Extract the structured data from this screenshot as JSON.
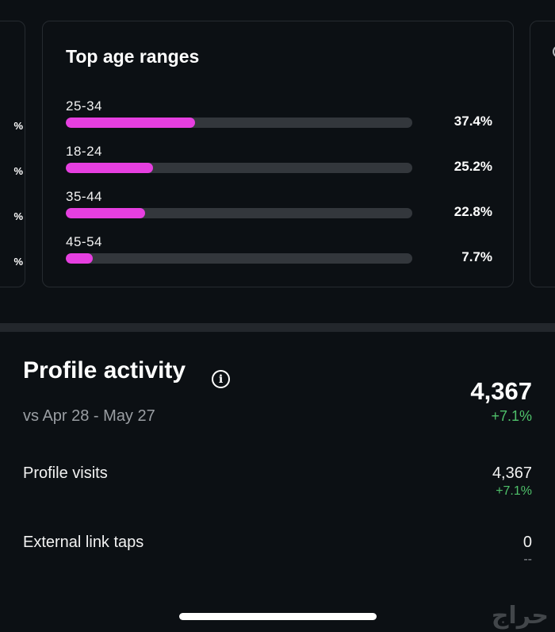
{
  "left_card": {
    "pct_labels": [
      "%",
      "%",
      "%",
      "%"
    ]
  },
  "age_card": {
    "title": "Top age ranges",
    "ranges": [
      {
        "label": "25-34",
        "value": 37.4,
        "display": "37.4%"
      },
      {
        "label": "18-24",
        "value": 25.2,
        "display": "25.2%"
      },
      {
        "label": "35-44",
        "value": 22.8,
        "display": "22.8%"
      },
      {
        "label": "45-54",
        "value": 7.7,
        "display": "7.7%"
      }
    ],
    "bar_color": "#e63fe0",
    "track_color": "#33373c"
  },
  "profile_activity": {
    "title": "Profile activity",
    "info_icon": "info-icon",
    "comparison": "vs Apr 28 - May 27",
    "total": "4,367",
    "total_change": "+7.1%",
    "metrics": [
      {
        "label": "Profile visits",
        "value": "4,367",
        "change": "+7.1%"
      },
      {
        "label": "External link taps",
        "value": "0",
        "change": "--"
      }
    ]
  },
  "watermark": "حراج",
  "colors": {
    "positive": "#4fc16a",
    "background": "#0c1014"
  }
}
